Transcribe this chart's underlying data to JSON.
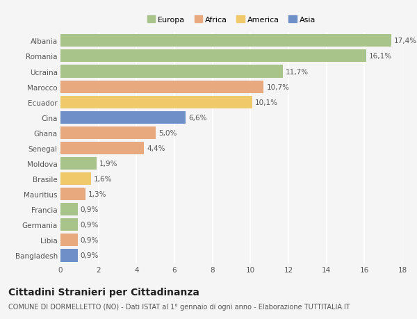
{
  "categories": [
    "Albania",
    "Romania",
    "Ucraina",
    "Marocco",
    "Ecuador",
    "Cina",
    "Ghana",
    "Senegal",
    "Moldova",
    "Brasile",
    "Mauritius",
    "Francia",
    "Germania",
    "Libia",
    "Bangladesh"
  ],
  "values": [
    17.4,
    16.1,
    11.7,
    10.7,
    10.1,
    6.6,
    5.0,
    4.4,
    1.9,
    1.6,
    1.3,
    0.9,
    0.9,
    0.9,
    0.9
  ],
  "labels": [
    "17,4%",
    "16,1%",
    "11,7%",
    "10,7%",
    "10,1%",
    "6,6%",
    "5,0%",
    "4,4%",
    "1,9%",
    "1,6%",
    "1,3%",
    "0,9%",
    "0,9%",
    "0,9%",
    "0,9%"
  ],
  "bar_colors": [
    "#a8c48a",
    "#a8c48a",
    "#a8c48a",
    "#e8a97e",
    "#f0c96a",
    "#6e8fc7",
    "#e8a97e",
    "#e8a97e",
    "#a8c48a",
    "#f0c96a",
    "#e8a97e",
    "#a8c48a",
    "#a8c48a",
    "#e8a97e",
    "#6e8fc7"
  ],
  "legend_labels": [
    "Europa",
    "Africa",
    "America",
    "Asia"
  ],
  "legend_colors": [
    "#a8c48a",
    "#e8a97e",
    "#f0c96a",
    "#6e8fc7"
  ],
  "title": "Cittadini Stranieri per Cittadinanza",
  "subtitle": "COMUNE DI DORMELLETTO (NO) - Dati ISTAT al 1° gennaio di ogni anno - Elaborazione TUTTITALIA.IT",
  "xlim": [
    0,
    18
  ],
  "xticks": [
    0,
    2,
    4,
    6,
    8,
    10,
    12,
    14,
    16,
    18
  ],
  "background_color": "#f5f5f5",
  "grid_color": "#ffffff",
  "bar_height": 0.82,
  "label_fontsize": 7.5,
  "tick_fontsize": 7.5,
  "title_fontsize": 10,
  "subtitle_fontsize": 7
}
